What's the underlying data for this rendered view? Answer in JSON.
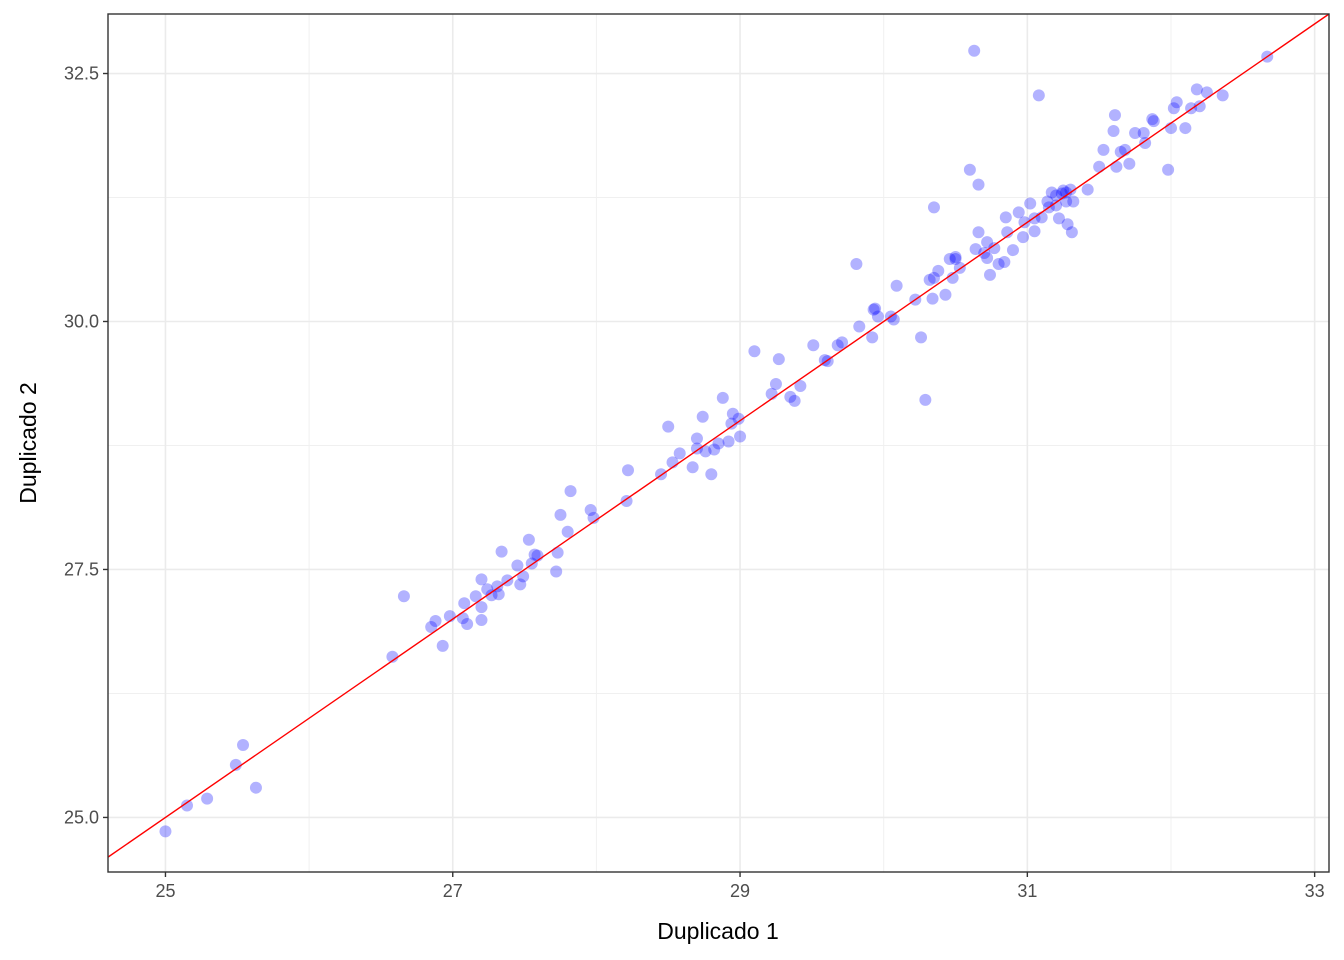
{
  "chart_data": {
    "type": "scatter",
    "title": "",
    "xlabel": "Duplicado 1",
    "ylabel": "Duplicado 2",
    "xlim": [
      24.6,
      33.1
    ],
    "ylim": [
      24.45,
      33.1
    ],
    "x_ticks": [
      25,
      27,
      29,
      31,
      33
    ],
    "x_tick_labels": [
      "25",
      "27",
      "29",
      "31",
      "33"
    ],
    "y_ticks": [
      25.0,
      27.5,
      30.0,
      32.5
    ],
    "y_tick_labels": [
      "25.0",
      "27.5",
      "30.0",
      "32.5"
    ],
    "grid": true,
    "point_color": "#0000ff",
    "point_opacity": 0.3,
    "reference_line": {
      "type": "identity",
      "slope": 1,
      "intercept": 0,
      "color": "#ff0000"
    },
    "points": [
      [
        25.0,
        24.86
      ],
      [
        25.15,
        25.12
      ],
      [
        25.29,
        25.19
      ],
      [
        25.49,
        25.53
      ],
      [
        25.54,
        25.73
      ],
      [
        25.63,
        25.3
      ],
      [
        26.58,
        26.62
      ],
      [
        26.66,
        27.23
      ],
      [
        26.85,
        26.92
      ],
      [
        26.88,
        26.98
      ],
      [
        26.93,
        26.73
      ],
      [
        26.98,
        27.03
      ],
      [
        27.07,
        27.01
      ],
      [
        27.08,
        27.16
      ],
      [
        27.1,
        26.95
      ],
      [
        27.16,
        27.23
      ],
      [
        27.2,
        27.12
      ],
      [
        27.2,
        26.99
      ],
      [
        27.2,
        27.4
      ],
      [
        27.24,
        27.3
      ],
      [
        27.27,
        27.24
      ],
      [
        27.31,
        27.33
      ],
      [
        27.32,
        27.25
      ],
      [
        27.34,
        27.68
      ],
      [
        27.38,
        27.39
      ],
      [
        27.45,
        27.54
      ],
      [
        27.47,
        27.35
      ],
      [
        27.49,
        27.43
      ],
      [
        27.53,
        27.8
      ],
      [
        27.55,
        27.56
      ],
      [
        27.57,
        27.65
      ],
      [
        27.59,
        27.64
      ],
      [
        27.72,
        27.48
      ],
      [
        27.73,
        27.67
      ],
      [
        27.75,
        28.05
      ],
      [
        27.8,
        27.88
      ],
      [
        27.82,
        28.29
      ],
      [
        27.96,
        28.1
      ],
      [
        27.98,
        28.02
      ],
      [
        28.21,
        28.19
      ],
      [
        28.22,
        28.5
      ],
      [
        28.45,
        28.46
      ],
      [
        28.5,
        28.94
      ],
      [
        28.53,
        28.58
      ],
      [
        28.58,
        28.67
      ],
      [
        28.67,
        28.53
      ],
      [
        28.7,
        28.82
      ],
      [
        28.7,
        28.72
      ],
      [
        28.74,
        29.04
      ],
      [
        28.76,
        28.69
      ],
      [
        28.8,
        28.46
      ],
      [
        28.82,
        28.71
      ],
      [
        28.85,
        28.77
      ],
      [
        28.88,
        29.23
      ],
      [
        28.92,
        28.79
      ],
      [
        28.94,
        28.97
      ],
      [
        28.95,
        29.07
      ],
      [
        28.99,
        29.02
      ],
      [
        29.0,
        28.84
      ],
      [
        29.1,
        29.7
      ],
      [
        29.22,
        29.27
      ],
      [
        29.25,
        29.37
      ],
      [
        29.27,
        29.62
      ],
      [
        29.35,
        29.24
      ],
      [
        29.38,
        29.2
      ],
      [
        29.42,
        29.35
      ],
      [
        29.51,
        29.76
      ],
      [
        29.59,
        29.61
      ],
      [
        29.61,
        29.6
      ],
      [
        29.68,
        29.76
      ],
      [
        29.71,
        29.79
      ],
      [
        29.81,
        30.58
      ],
      [
        29.83,
        29.95
      ],
      [
        29.92,
        29.84
      ],
      [
        29.93,
        30.12
      ],
      [
        29.94,
        30.13
      ],
      [
        29.96,
        30.05
      ],
      [
        30.05,
        30.05
      ],
      [
        30.07,
        30.02
      ],
      [
        30.09,
        30.36
      ],
      [
        30.22,
        30.22
      ],
      [
        30.26,
        29.84
      ],
      [
        30.29,
        29.21
      ],
      [
        30.32,
        30.42
      ],
      [
        30.34,
        30.23
      ],
      [
        30.35,
        31.15
      ],
      [
        30.35,
        30.44
      ],
      [
        30.38,
        30.51
      ],
      [
        30.43,
        30.27
      ],
      [
        30.46,
        30.63
      ],
      [
        30.48,
        30.44
      ],
      [
        30.5,
        30.65
      ],
      [
        30.5,
        30.63
      ],
      [
        30.53,
        30.54
      ],
      [
        30.6,
        31.53
      ],
      [
        30.63,
        32.73
      ],
      [
        30.64,
        30.73
      ],
      [
        30.66,
        30.9
      ],
      [
        30.66,
        31.38
      ],
      [
        30.7,
        30.69
      ],
      [
        30.72,
        30.8
      ],
      [
        30.72,
        30.64
      ],
      [
        30.74,
        30.47
      ],
      [
        30.77,
        30.74
      ],
      [
        30.8,
        30.58
      ],
      [
        30.84,
        30.6
      ],
      [
        30.85,
        31.05
      ],
      [
        30.86,
        30.9
      ],
      [
        30.9,
        30.72
      ],
      [
        30.94,
        31.1
      ],
      [
        30.97,
        30.85
      ],
      [
        30.98,
        31.0
      ],
      [
        31.02,
        31.19
      ],
      [
        31.05,
        30.91
      ],
      [
        31.05,
        31.04
      ],
      [
        31.08,
        32.28
      ],
      [
        31.1,
        31.05
      ],
      [
        31.14,
        31.21
      ],
      [
        31.15,
        31.15
      ],
      [
        31.17,
        31.3
      ],
      [
        31.2,
        31.17
      ],
      [
        31.2,
        31.27
      ],
      [
        31.22,
        31.04
      ],
      [
        31.24,
        31.29
      ],
      [
        31.25,
        31.32
      ],
      [
        31.27,
        31.21
      ],
      [
        31.27,
        31.3
      ],
      [
        31.28,
        30.98
      ],
      [
        31.3,
        31.33
      ],
      [
        31.31,
        30.9
      ],
      [
        31.32,
        31.21
      ],
      [
        31.42,
        31.33
      ],
      [
        31.5,
        31.56
      ],
      [
        31.53,
        31.73
      ],
      [
        31.6,
        31.92
      ],
      [
        31.61,
        32.08
      ],
      [
        31.62,
        31.56
      ],
      [
        31.65,
        31.71
      ],
      [
        31.68,
        31.73
      ],
      [
        31.71,
        31.59
      ],
      [
        31.75,
        31.9
      ],
      [
        31.81,
        31.9
      ],
      [
        31.82,
        31.8
      ],
      [
        31.87,
        32.04
      ],
      [
        31.88,
        32.02
      ],
      [
        31.98,
        31.53
      ],
      [
        32.0,
        31.95
      ],
      [
        32.02,
        32.15
      ],
      [
        32.04,
        32.21
      ],
      [
        32.1,
        31.95
      ],
      [
        32.14,
        32.15
      ],
      [
        32.18,
        32.34
      ],
      [
        32.2,
        32.17
      ],
      [
        32.25,
        32.31
      ],
      [
        32.36,
        32.28
      ],
      [
        32.67,
        32.67
      ]
    ]
  }
}
